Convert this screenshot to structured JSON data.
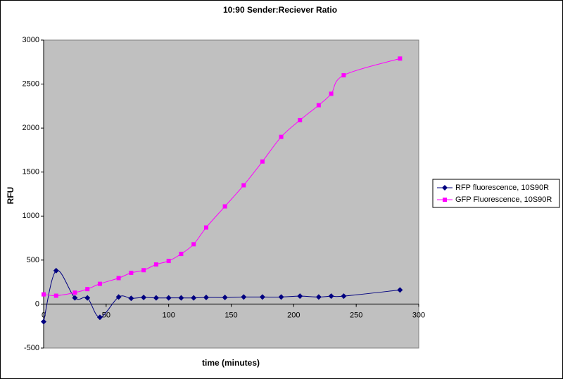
{
  "chart_data": {
    "type": "line",
    "title": "10:90 Sender:Reciever Ratio",
    "x_label": "time (minutes)",
    "y_label": "RFU",
    "smooth": true,
    "legend": "right",
    "plot_background": "#c0c0c0",
    "xlim": [
      0,
      300
    ],
    "xticks": [
      0,
      50,
      100,
      150,
      200,
      250,
      300
    ],
    "ylim": [
      -500,
      3000
    ],
    "yticks": [
      -500,
      0,
      500,
      1000,
      1500,
      2000,
      2500,
      3000
    ],
    "series": [
      {
        "name": "RFP fluorescence, 10S90R",
        "color": "#000080",
        "marker": "diamond",
        "x": [
          0,
          10,
          25,
          35,
          45,
          60,
          70,
          80,
          90,
          100,
          110,
          120,
          130,
          145,
          160,
          175,
          190,
          205,
          220,
          230,
          240,
          285
        ],
        "values": [
          -200,
          380,
          70,
          70,
          -150,
          80,
          65,
          75,
          70,
          70,
          70,
          70,
          75,
          75,
          80,
          80,
          80,
          90,
          80,
          90,
          90,
          160
        ]
      },
      {
        "name": "GFP Fluorescence, 10S90R",
        "color": "#ff00ff",
        "marker": "square",
        "x": [
          0,
          10,
          25,
          35,
          45,
          60,
          70,
          80,
          90,
          100,
          110,
          120,
          130,
          145,
          160,
          175,
          190,
          205,
          220,
          230,
          240,
          285
        ],
        "values": [
          110,
          95,
          130,
          170,
          230,
          295,
          355,
          385,
          450,
          490,
          570,
          680,
          870,
          1110,
          1350,
          1620,
          1900,
          2090,
          2260,
          2390,
          2600,
          2790
        ]
      }
    ]
  }
}
